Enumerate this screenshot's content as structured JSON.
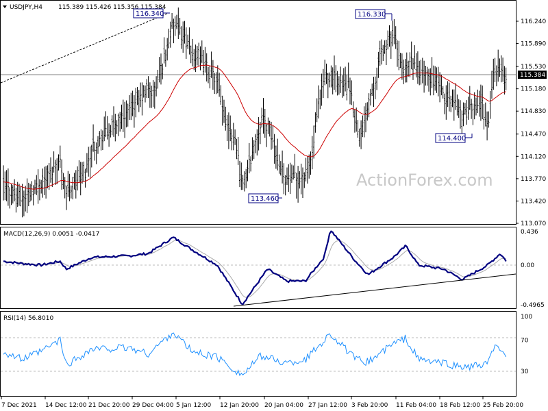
{
  "header": {
    "symbol": "USDJPY,H4",
    "ohlc": "115.389 115.426 115.356 115.384"
  },
  "watermark": "ActionForex.com",
  "colors": {
    "bars": "#000000",
    "ma": "#cc0000",
    "macd": "#000080",
    "signal": "#aaaaaa",
    "rsi": "#1e90ff",
    "callout": "#000080",
    "price_line": "#808080",
    "price_label_bg": "#000000",
    "trendline": "#000000"
  },
  "chart_data": [
    {
      "type": "ohlc",
      "name": "price",
      "price_axis": {
        "ticks": [
          "116.240",
          "115.890",
          "115.530",
          "115.180",
          "114.830",
          "114.470",
          "114.120",
          "113.770",
          "113.420",
          "113.070"
        ],
        "ylim": [
          113.07,
          116.38
        ]
      },
      "current_price": "115.384",
      "moving_average": "red",
      "callouts": [
        {
          "label": "116.340",
          "time": "3 Jan",
          "value": 116.34
        },
        {
          "label": "116.330",
          "time": "3 Feb",
          "value": 116.33
        },
        {
          "label": "113.460",
          "time": "14 Jan",
          "value": 113.46
        },
        {
          "label": "114.400",
          "time": "22 Feb",
          "value": 114.4
        }
      ],
      "trendline_dashed": {
        "from": {
          "time": "7 Dec",
          "value": 115.27
        },
        "to": {
          "time": "3 Jan",
          "value": 116.34
        }
      },
      "key_closes": [
        {
          "time": "7 Dec",
          "value": 113.65
        },
        {
          "time": "10 Dec",
          "value": 113.45
        },
        {
          "time": "13 Dec",
          "value": 113.7
        },
        {
          "time": "16 Dec",
          "value": 114.05
        },
        {
          "time": "17 Dec",
          "value": 113.55
        },
        {
          "time": "20 Dec",
          "value": 113.85
        },
        {
          "time": "21 Dec",
          "value": 114.25
        },
        {
          "time": "23 Dec",
          "value": 114.45
        },
        {
          "time": "27 Dec",
          "value": 114.85
        },
        {
          "time": "30 Dec",
          "value": 115.15
        },
        {
          "time": "31 Dec",
          "value": 115.1
        },
        {
          "time": "3 Jan",
          "value": 116.2
        },
        {
          "time": "5 Jan",
          "value": 115.95
        },
        {
          "time": "6 Jan",
          "value": 115.7
        },
        {
          "time": "7 Jan",
          "value": 115.7
        },
        {
          "time": "10 Jan",
          "value": 115.3
        },
        {
          "time": "11 Jan",
          "value": 114.75
        },
        {
          "time": "13 Jan",
          "value": 114.35
        },
        {
          "time": "14 Jan",
          "value": 113.6
        },
        {
          "time": "17 Jan",
          "value": 114.7
        },
        {
          "time": "18 Jan",
          "value": 114.6
        },
        {
          "time": "19 Jan",
          "value": 114.3
        },
        {
          "time": "20 Jan",
          "value": 114.0
        },
        {
          "time": "21 Jan",
          "value": 113.75
        },
        {
          "time": "24 Jan",
          "value": 113.8
        },
        {
          "time": "25 Jan",
          "value": 114.1
        },
        {
          "time": "26 Jan",
          "value": 114.8
        },
        {
          "time": "27 Jan",
          "value": 115.35
        },
        {
          "time": "28 Jan",
          "value": 115.4
        },
        {
          "time": "31 Jan",
          "value": 115.2
        },
        {
          "time": "1 Feb",
          "value": 114.65
        },
        {
          "time": "2 Feb",
          "value": 114.4
        },
        {
          "time": "3 Feb",
          "value": 115.0
        },
        {
          "time": "4 Feb",
          "value": 115.3
        },
        {
          "time": "5 Feb",
          "value": 115.7
        },
        {
          "time": "7 Feb",
          "value": 116.05
        },
        {
          "time": "8 Feb",
          "value": 115.6
        },
        {
          "time": "9 Feb",
          "value": 115.45
        },
        {
          "time": "10 Feb",
          "value": 115.6
        },
        {
          "time": "11 Feb",
          "value": 115.45
        },
        {
          "time": "14 Feb",
          "value": 115.3
        },
        {
          "time": "15 Feb",
          "value": 115.0
        },
        {
          "time": "16 Feb",
          "value": 115.0
        },
        {
          "time": "17 Feb",
          "value": 114.95
        },
        {
          "time": "18 Feb",
          "value": 114.75
        },
        {
          "time": "21 Feb",
          "value": 115.0
        },
        {
          "time": "22 Feb",
          "value": 114.55
        },
        {
          "time": "23 Feb",
          "value": 115.5
        },
        {
          "time": "24 Feb",
          "value": 115.45
        },
        {
          "time": "25 Feb",
          "value": 115.3
        },
        {
          "time": "26 Feb",
          "value": 114.95
        },
        {
          "time": "27 Feb",
          "value": 115.384
        }
      ]
    },
    {
      "type": "line",
      "name": "macd",
      "title": "MACD(12,26,9) 0.0051 -0.0417",
      "ticks": [
        "0.436",
        "0.00",
        "-0.4965"
      ],
      "ylim": [
        -0.55,
        0.5
      ],
      "macd_values": [
        {
          "time": "7 Dec",
          "value": 0.05
        },
        {
          "time": "10 Dec",
          "value": 0.02
        },
        {
          "time": "13 Dec",
          "value": 0.0
        },
        {
          "time": "16 Dec",
          "value": 0.05
        },
        {
          "time": "17 Dec",
          "value": -0.05
        },
        {
          "time": "21 Dec",
          "value": 0.1
        },
        {
          "time": "27 Dec",
          "value": 0.12
        },
        {
          "time": "30 Dec",
          "value": 0.15
        },
        {
          "time": "3 Jan",
          "value": 0.36
        },
        {
          "time": "6 Jan",
          "value": 0.2
        },
        {
          "time": "10 Jan",
          "value": 0.0
        },
        {
          "time": "14 Jan",
          "value": -0.49
        },
        {
          "time": "18 Jan",
          "value": -0.05
        },
        {
          "time": "21 Jan",
          "value": -0.2
        },
        {
          "time": "24 Jan",
          "value": -0.2
        },
        {
          "time": "27 Jan",
          "value": 0.1
        },
        {
          "time": "28 Jan",
          "value": 0.46
        },
        {
          "time": "1 Feb",
          "value": 0.05
        },
        {
          "time": "3 Feb",
          "value": -0.12
        },
        {
          "time": "7 Feb",
          "value": 0.1
        },
        {
          "time": "9 Feb",
          "value": 0.25
        },
        {
          "time": "11 Feb",
          "value": 0.0
        },
        {
          "time": "15 Feb",
          "value": -0.05
        },
        {
          "time": "18 Feb",
          "value": -0.18
        },
        {
          "time": "22 Feb",
          "value": 0.0
        },
        {
          "time": "24 Feb",
          "value": 0.15
        },
        {
          "time": "26 Feb",
          "value": -0.05
        },
        {
          "time": "27 Feb",
          "value": 0.0051
        }
      ],
      "signal_value": "-0.0417",
      "trendline": {
        "from": {
          "time": "14 Jan",
          "value": -0.49
        },
        "to": {
          "time": "27 Feb",
          "value": -0.13
        }
      }
    },
    {
      "type": "line",
      "name": "rsi",
      "title": "RSI(14) 56.8010",
      "ticks": [
        "100",
        "70",
        "30"
      ],
      "ylim": [
        0,
        100
      ],
      "levels": [
        70,
        30
      ],
      "rsi_values": [
        {
          "time": "7 Dec",
          "value": 55
        },
        {
          "time": "10 Dec",
          "value": 45
        },
        {
          "time": "13 Dec",
          "value": 55
        },
        {
          "time": "16 Dec",
          "value": 70
        },
        {
          "time": "17 Dec",
          "value": 38
        },
        {
          "time": "21 Dec",
          "value": 58
        },
        {
          "time": "27 Dec",
          "value": 60
        },
        {
          "time": "30 Dec",
          "value": 52
        },
        {
          "time": "3 Jan",
          "value": 80
        },
        {
          "time": "6 Jan",
          "value": 55
        },
        {
          "time": "10 Jan",
          "value": 48
        },
        {
          "time": "14 Jan",
          "value": 25
        },
        {
          "time": "17 Jan",
          "value": 50
        },
        {
          "time": "21 Jan",
          "value": 40
        },
        {
          "time": "24 Jan",
          "value": 45
        },
        {
          "time": "27 Jan",
          "value": 70
        },
        {
          "time": "28 Jan",
          "value": 78
        },
        {
          "time": "1 Feb",
          "value": 45
        },
        {
          "time": "3 Feb",
          "value": 42
        },
        {
          "time": "7 Feb",
          "value": 65
        },
        {
          "time": "9 Feb",
          "value": 72
        },
        {
          "time": "11 Feb",
          "value": 45
        },
        {
          "time": "15 Feb",
          "value": 40
        },
        {
          "time": "18 Feb",
          "value": 35
        },
        {
          "time": "22 Feb",
          "value": 38
        },
        {
          "time": "23 Feb",
          "value": 62
        },
        {
          "time": "25 Feb",
          "value": 48
        },
        {
          "time": "27 Feb",
          "value": 56.801
        }
      ]
    }
  ],
  "x_axis": {
    "labels": [
      "7 Dec 2021",
      "14 Dec 12:00",
      "21 Dec 20:00",
      "29 Dec 04:00",
      "5 Jan 12:00",
      "12 Jan 20:00",
      "20 Jan 04:00",
      "27 Jan 12:00",
      "3 Feb 20:00",
      "11 Feb 04:00",
      "18 Feb 12:00",
      "25 Feb 20:00"
    ]
  }
}
